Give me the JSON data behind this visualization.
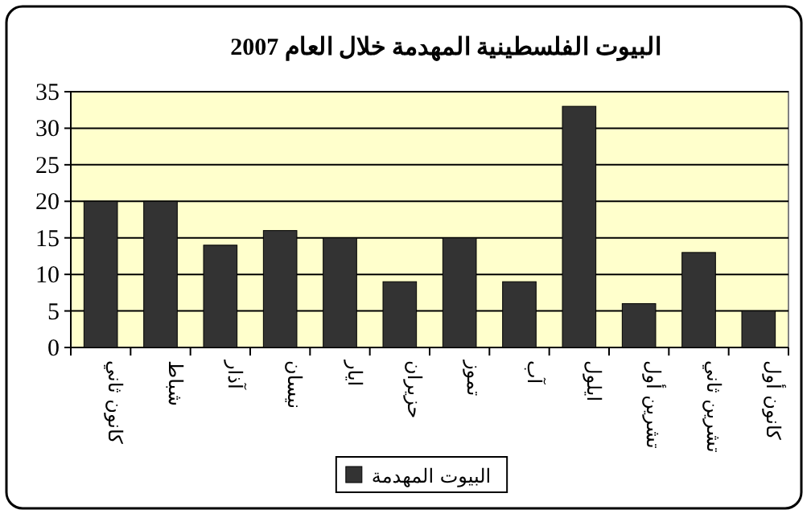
{
  "chart_data": {
    "type": "bar",
    "title": "البيوت الفلسطينية المهدمة خلال العام 2007",
    "categories": [
      "كانون ثاني",
      "شباط",
      "آذار",
      "نيسان",
      "ايار",
      "حزيران",
      "تموز",
      "آب",
      "ايلول",
      "تشرين أول",
      "تشرين ثاني",
      "كانون أول"
    ],
    "series": [
      {
        "name": "البيوت المهدمة",
        "color": "#333333",
        "values": [
          20,
          20,
          14,
          16,
          15,
          9,
          15,
          9,
          33,
          6,
          13,
          5
        ]
      }
    ],
    "ylim": [
      0,
      35
    ],
    "yticks": [
      0,
      5,
      10,
      15,
      20,
      25,
      30,
      35
    ],
    "grid": "y",
    "legend": "bottom"
  }
}
